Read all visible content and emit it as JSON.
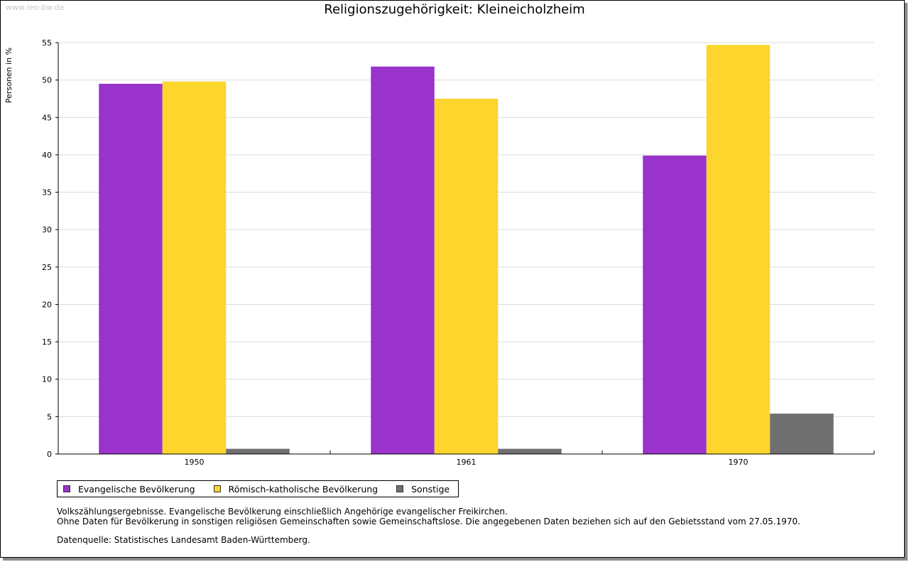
{
  "watermark": "www.leo-bw.de",
  "chart_data": {
    "type": "bar",
    "title": "Religionszugehörigkeit: Kleineicholzheim",
    "xlabel": "",
    "ylabel": "Personen in %",
    "categories": [
      "1950",
      "1961",
      "1970"
    ],
    "series": [
      {
        "name": "Evangelische Bevölkerung",
        "color": "#9933cc",
        "values": [
          49.5,
          51.8,
          39.9
        ]
      },
      {
        "name": "Römisch-katholische Bevölkerung",
        "color": "#fcd52d",
        "values": [
          49.8,
          47.5,
          54.7
        ]
      },
      {
        "name": "Sonstige",
        "color": "#707070",
        "values": [
          0.7,
          0.7,
          5.4
        ]
      }
    ],
    "ylim": [
      0,
      55
    ],
    "yticks": [
      "0",
      "5",
      "10",
      "15",
      "20",
      "25",
      "30",
      "35",
      "40",
      "45",
      "50",
      "55"
    ],
    "grid": true,
    "legend_position": "bottom-left"
  },
  "notes": {
    "line1": "Volkszählungsergebnisse. Evangelische Bevölkerung einschließlich Angehörige evangelischer Freikirchen.",
    "line2": "Ohne Daten für Bevölkerung in sonstigen religiösen Gemeinschaften sowie Gemeinschaftslose. Die angegebenen Daten beziehen sich auf den Gebietsstand vom 27.05.1970."
  },
  "source": "Datenquelle: Statistisches Landesamt Baden-Württemberg."
}
